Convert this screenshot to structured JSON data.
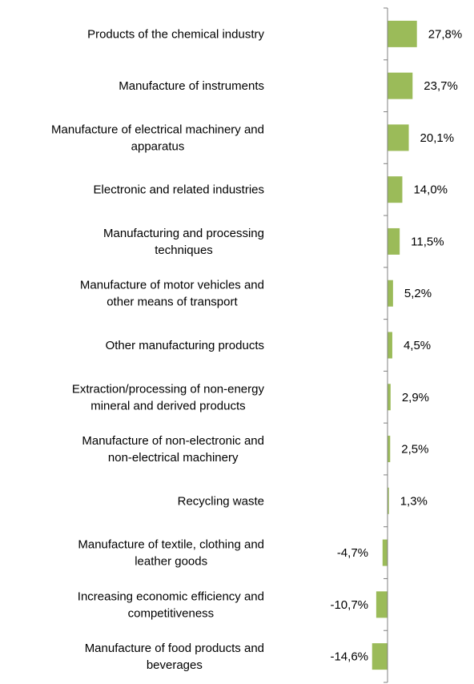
{
  "chart_data": {
    "type": "bar",
    "orientation": "horizontal",
    "grid": false,
    "legend": "none",
    "bar_color": "#9BBB59",
    "axis_color": "#808080",
    "title": "",
    "xlabel": "",
    "ylabel": "",
    "xlim": [
      -15,
      28
    ],
    "categories": [
      "Products of the chemical industry",
      "Manufacture of instruments",
      "Manufacture of electrical machinery and apparatus",
      "Electronic and related industries",
      "Manufacturing and processing techniques",
      "Manufacture of motor vehicles and other means of transport",
      "Other manufacturing products",
      "Extraction/processing of non-energy mineral and derived products",
      "Manufacture of non-electronic and non-electrical machinery",
      "Recycling waste",
      "Manufacture of textile, clothing and leather goods",
      "Increasing economic efficiency and competitiveness",
      "Manufacture of food products and beverages"
    ],
    "category_lines": [
      [
        "Products of the chemical industry"
      ],
      [
        "Manufacture of instruments"
      ],
      [
        "Manufacture of electrical machinery and",
        "apparatus"
      ],
      [
        "Electronic and related industries"
      ],
      [
        "Manufacturing and processing",
        "techniques"
      ],
      [
        "Manufacture of motor vehicles and",
        "other means of transport"
      ],
      [
        "Other manufacturing products"
      ],
      [
        "Extraction/processing of non-energy",
        "mineral and derived products"
      ],
      [
        "Manufacture of non-electronic and",
        "non-electrical machinery"
      ],
      [
        "Recycling waste"
      ],
      [
        "Manufacture of textile, clothing and",
        "leather goods"
      ],
      [
        "Increasing economic efficiency and",
        "competitiveness"
      ],
      [
        "Manufacture of food products and",
        "beverages"
      ]
    ],
    "values": [
      27.8,
      23.7,
      20.1,
      14.0,
      11.5,
      5.2,
      4.5,
      2.9,
      2.5,
      1.3,
      -4.7,
      -10.7,
      -14.6
    ],
    "data_labels": [
      "27,8%",
      "23,7%",
      "20,1%",
      "14,0%",
      "11,5%",
      "5,2%",
      "4,5%",
      "2,9%",
      "2,5%",
      "1,3%",
      "-4,7%",
      "-10,7%",
      "-14,6%"
    ]
  }
}
